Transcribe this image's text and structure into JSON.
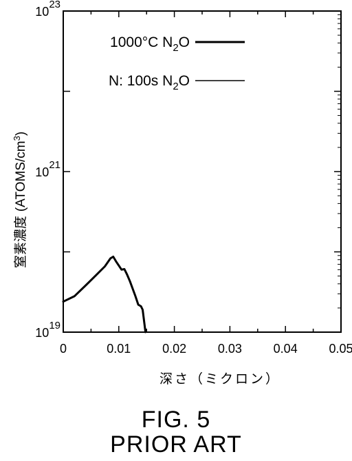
{
  "figure": {
    "title": "FIG. 5",
    "subtitle": "PRIOR ART"
  },
  "chart_data": {
    "type": "line",
    "ylabel_main": "窒素濃度",
    "ylabel_unit": "(ATOMS/cm",
    "ylabel_unit_sup": "3",
    "ylabel_unit_close": ")",
    "xlabel": "深さ（ミクロン）",
    "xlim": [
      0,
      0.05
    ],
    "ylim": [
      1e+19,
      1e+23
    ],
    "yscale": "log",
    "x_ticks": [
      {
        "value": 0,
        "label": "0"
      },
      {
        "value": 0.01,
        "label": "0.01"
      },
      {
        "value": 0.02,
        "label": "0.02"
      },
      {
        "value": 0.03,
        "label": "0.03"
      },
      {
        "value": 0.04,
        "label": "0.04"
      },
      {
        "value": 0.05,
        "label": "0.05"
      }
    ],
    "y_ticks": [
      {
        "value": 1e+19,
        "base": "10",
        "exp": "19"
      },
      {
        "value": 1e+21,
        "base": "10",
        "exp": "21"
      },
      {
        "value": 1e+23,
        "base": "10",
        "exp": "23"
      }
    ],
    "legend_placement": "top-right",
    "series": [
      {
        "name_parts": [
          "1000°C  N",
          "2",
          "O"
        ],
        "stroke_width": 3,
        "color": "#000000",
        "x": [
          0.0,
          0.002,
          0.004,
          0.006,
          0.0075,
          0.0085,
          0.009,
          0.0095,
          0.0105,
          0.011,
          0.0115,
          0.012,
          0.013,
          0.0135,
          0.014,
          0.0143,
          0.0148
        ],
        "y": [
          2.4e+19,
          2.8e+19,
          3.8e+19,
          5.2e+19,
          6.6e+19,
          8.3e+19,
          8.7e+19,
          7.6e+19,
          6e+19,
          6.1e+19,
          5.2e+19,
          4.3e+19,
          2.8e+19,
          2.2e+19,
          2.1e+19,
          1.9e+19,
          1e+19
        ]
      },
      {
        "name_parts": [
          "N: 100s  N",
          "2",
          "O"
        ],
        "stroke_width": 1.5,
        "color": "#000000",
        "x": [],
        "y": []
      }
    ]
  }
}
